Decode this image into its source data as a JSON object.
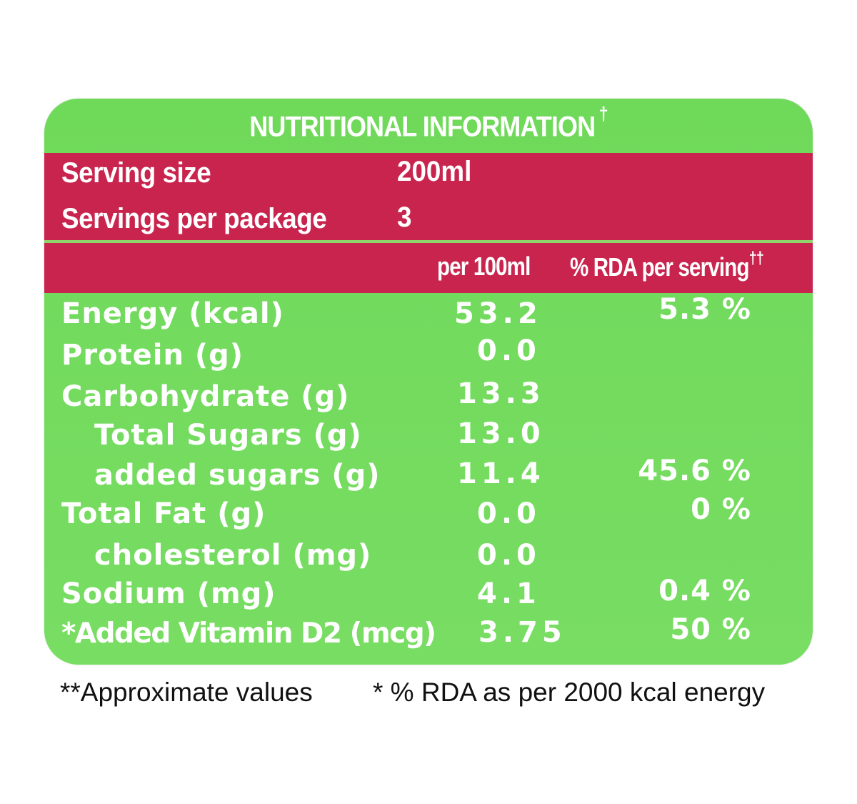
{
  "label": {
    "title": "NUTRITIONAL INFORMATION",
    "title_mark": "†",
    "serving_size_label": "Serving size",
    "serving_size_value": "200ml",
    "servings_per_package_label": "Servings per package",
    "servings_per_package_value": "3",
    "col_per100": "per 100ml",
    "col_rda": "% RDA per serving",
    "col_rda_mark": "††",
    "rows": [
      {
        "name": "Energy (kcal)",
        "value": "53.2",
        "rda": "5.3 %"
      },
      {
        "name": "Protein (g)",
        "value": "0.0",
        "rda": ""
      },
      {
        "name": "Carbohydrate (g)",
        "value": "13.3",
        "rda": ""
      },
      {
        "name": "Total Sugars (g)",
        "value": "13.0",
        "rda": ""
      },
      {
        "name": "added sugars (g)",
        "value": "11.4",
        "rda": "45.6 %"
      },
      {
        "name": "Total Fat (g)",
        "value": "0.0",
        "rda": "0 %"
      },
      {
        "name": "cholesterol (mg)",
        "value": "0.0",
        "rda": ""
      },
      {
        "name": "Sodium (mg)",
        "value": "4.1",
        "rda": "0.4 %"
      },
      {
        "name": "*Added Vitamin D2 (mcg)",
        "value": "3.75",
        "rda": "50 %"
      }
    ],
    "colors": {
      "green": "#72db5e",
      "magenta": "#c8244e",
      "text": "#ffffff"
    }
  },
  "footer": {
    "approx": "**Approximate values",
    "rda_note": "* % RDA as per 2000 kcal energy"
  }
}
